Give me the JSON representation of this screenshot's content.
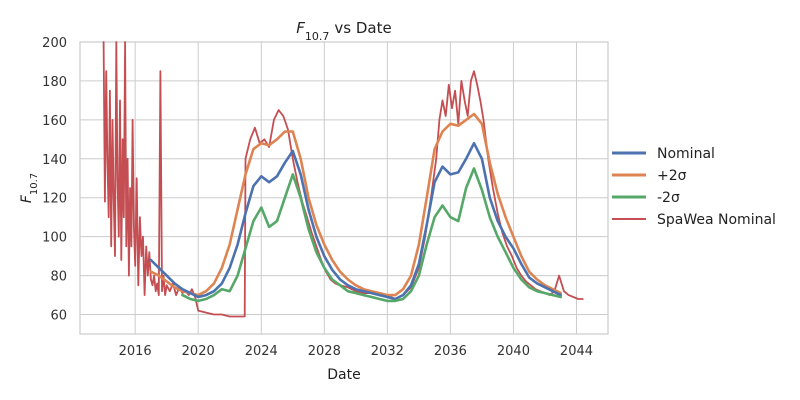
{
  "chart_data": {
    "type": "line",
    "title": "F10.7 vs Date",
    "title_parts": {
      "symbol": "F",
      "subscript": "10.7",
      "rest": "vs Date"
    },
    "xlabel": "Date",
    "ylabel": "F10.7",
    "ylabel_parts": {
      "symbol": "F",
      "subscript": "10.7"
    },
    "xlim": [
      2012.5,
      2046.0
    ],
    "ylim": [
      50,
      200
    ],
    "x_ticks": [
      2016,
      2020,
      2024,
      2028,
      2032,
      2036,
      2040,
      2044
    ],
    "x_tick_labels": [
      "2016",
      "2020",
      "2024",
      "2028",
      "2032",
      "2036",
      "2040",
      "2044"
    ],
    "y_ticks": [
      60,
      80,
      100,
      120,
      140,
      160,
      180,
      200
    ],
    "y_tick_labels": [
      "60",
      "80",
      "100",
      "120",
      "140",
      "160",
      "180",
      "200"
    ],
    "grid": true,
    "legend_position": "right, outside plot",
    "series": [
      {
        "name": "Nominal",
        "color": "#4c72b0",
        "x": [
          2017.0,
          2017.5,
          2018.0,
          2018.5,
          2019.0,
          2019.5,
          2020.0,
          2020.5,
          2021.0,
          2021.5,
          2022.0,
          2022.5,
          2023.0,
          2023.5,
          2024.0,
          2024.5,
          2025.0,
          2025.5,
          2026.0,
          2026.5,
          2027.0,
          2027.5,
          2028.0,
          2028.5,
          2029.0,
          2029.5,
          2030.0,
          2030.5,
          2031.0,
          2031.5,
          2032.0,
          2032.5,
          2033.0,
          2033.5,
          2034.0,
          2034.5,
          2035.0,
          2035.5,
          2036.0,
          2036.5,
          2037.0,
          2037.5,
          2038.0,
          2038.5,
          2039.0,
          2039.5,
          2040.0,
          2040.5,
          2041.0,
          2041.5,
          2042.0,
          2042.5,
          2043.0
        ],
        "y": [
          88,
          84,
          80,
          76,
          73,
          71,
          69,
          70,
          72,
          76,
          84,
          96,
          112,
          126,
          131,
          128,
          131,
          138,
          144,
          132,
          114,
          100,
          90,
          83,
          78,
          75,
          73,
          72,
          71,
          70,
          69,
          68,
          70,
          75,
          86,
          106,
          128,
          136,
          132,
          133,
          140,
          148,
          140,
          120,
          108,
          100,
          94,
          86,
          79,
          76,
          74,
          72,
          70
        ]
      },
      {
        "name": "+2σ",
        "color": "#dd8452",
        "x": [
          2017.0,
          2017.5,
          2018.0,
          2018.5,
          2019.0,
          2019.5,
          2020.0,
          2020.5,
          2021.0,
          2021.5,
          2022.0,
          2022.5,
          2023.0,
          2023.5,
          2024.0,
          2024.5,
          2025.0,
          2025.5,
          2026.0,
          2026.5,
          2027.0,
          2027.5,
          2028.0,
          2028.5,
          2029.0,
          2029.5,
          2030.0,
          2030.5,
          2031.0,
          2031.5,
          2032.0,
          2032.5,
          2033.0,
          2033.5,
          2034.0,
          2034.5,
          2035.0,
          2035.5,
          2036.0,
          2036.5,
          2037.0,
          2037.5,
          2038.0,
          2038.5,
          2039.0,
          2039.5,
          2040.0,
          2040.5,
          2041.0,
          2041.5,
          2042.0,
          2042.5,
          2043.0
        ],
        "y": [
          82,
          80,
          77,
          74,
          72,
          71,
          70,
          72,
          76,
          84,
          96,
          114,
          132,
          145,
          148,
          147,
          150,
          154,
          154,
          140,
          120,
          106,
          96,
          88,
          82,
          78,
          75,
          73,
          72,
          71,
          70,
          70,
          73,
          80,
          96,
          120,
          145,
          154,
          158,
          157,
          160,
          163,
          158,
          138,
          122,
          110,
          100,
          90,
          82,
          78,
          75,
          73,
          71
        ]
      },
      {
        "name": "-2σ",
        "color": "#55a868",
        "x": [
          2019.0,
          2019.5,
          2020.0,
          2020.5,
          2021.0,
          2021.5,
          2022.0,
          2022.5,
          2023.0,
          2023.5,
          2024.0,
          2024.5,
          2025.0,
          2025.5,
          2026.0,
          2026.5,
          2027.0,
          2027.5,
          2028.0,
          2028.5,
          2029.0,
          2029.5,
          2030.0,
          2030.5,
          2031.0,
          2031.5,
          2032.0,
          2032.5,
          2033.0,
          2033.5,
          2034.0,
          2034.5,
          2035.0,
          2035.5,
          2036.0,
          2036.5,
          2037.0,
          2037.5,
          2038.0,
          2038.5,
          2039.0,
          2039.5,
          2040.0,
          2040.5,
          2041.0,
          2041.5,
          2042.0,
          2042.5,
          2043.0
        ],
        "y": [
          70,
          68,
          67,
          68,
          70,
          73,
          72,
          80,
          94,
          108,
          115,
          105,
          108,
          120,
          132,
          120,
          104,
          92,
          84,
          78,
          75,
          72,
          71,
          70,
          69,
          68,
          67,
          67,
          68,
          72,
          80,
          96,
          110,
          116,
          110,
          108,
          125,
          135,
          124,
          110,
          100,
          92,
          84,
          78,
          74,
          72,
          71,
          70,
          69
        ]
      },
      {
        "name": "SpaWea Nominal",
        "color": "#c44e52",
        "x": [
          2014.0,
          2014.08,
          2014.16,
          2014.24,
          2014.32,
          2014.4,
          2014.48,
          2014.56,
          2014.64,
          2014.72,
          2014.8,
          2014.88,
          2014.96,
          2015.04,
          2015.12,
          2015.2,
          2015.28,
          2015.36,
          2015.44,
          2015.52,
          2015.6,
          2015.68,
          2015.76,
          2015.84,
          2015.92,
          2016.0,
          2016.1,
          2016.2,
          2016.3,
          2016.4,
          2016.5,
          2016.6,
          2016.7,
          2016.8,
          2016.9,
          2017.0,
          2017.1,
          2017.2,
          2017.3,
          2017.4,
          2017.5,
          2017.6,
          2017.7,
          2017.8,
          2017.9,
          2018.0,
          2018.2,
          2018.4,
          2018.6,
          2018.8,
          2019.0,
          2019.2,
          2019.4,
          2019.6,
          2019.8,
          2020.0,
          2020.5,
          2021.0,
          2021.5,
          2022.0,
          2022.5,
          2022.95,
          2023.0,
          2023.3,
          2023.6,
          2023.9,
          2024.2,
          2024.5,
          2024.8,
          2025.1,
          2025.4,
          2025.7,
          2026.0,
          2026.3,
          2026.6,
          2026.9,
          2027.2,
          2027.5,
          2027.8,
          2028.1,
          2028.4,
          2028.7,
          2029.0,
          2029.5,
          2030.0,
          2030.5,
          2031.0,
          2031.5,
          2032.0,
          2032.5,
          2033.0,
          2033.5,
          2034.0,
          2034.4,
          2034.8,
          2035.1,
          2035.3,
          2035.5,
          2035.7,
          2035.9,
          2036.1,
          2036.3,
          2036.5,
          2036.7,
          2036.9,
          2037.1,
          2037.3,
          2037.5,
          2037.7,
          2037.9,
          2038.1,
          2038.4,
          2038.7,
          2039.0,
          2039.3,
          2039.6,
          2039.9,
          2040.2,
          2040.5,
          2040.8,
          2041.1,
          2041.4,
          2041.7,
          2042.0,
          2042.3,
          2042.6,
          2042.9,
          2043.2,
          2043.5,
          2043.8,
          2044.1,
          2044.4
        ],
        "y": [
          200,
          118,
          185,
          140,
          110,
          175,
          95,
          160,
          120,
          90,
          200,
          130,
          100,
          170,
          88,
          150,
          110,
          200,
          95,
          140,
          80,
          125,
          95,
          160,
          105,
          85,
          130,
          75,
          110,
          90,
          100,
          70,
          95,
          80,
          92,
          78,
          75,
          80,
          72,
          76,
          70,
          185,
          72,
          80,
          70,
          75,
          72,
          76,
          70,
          74,
          71,
          72,
          70,
          73,
          69,
          62,
          61,
          60,
          60,
          59,
          59,
          59,
          140,
          150,
          156,
          148,
          150,
          146,
          160,
          165,
          162,
          155,
          140,
          128,
          118,
          110,
          102,
          95,
          88,
          82,
          78,
          76,
          75,
          74,
          72,
          71,
          71,
          70,
          70,
          68,
          70,
          74,
          84,
          100,
          122,
          140,
          160,
          170,
          162,
          178,
          166,
          175,
          158,
          180,
          170,
          162,
          180,
          185,
          178,
          170,
          160,
          140,
          125,
          112,
          102,
          95,
          90,
          84,
          80,
          77,
          75,
          73,
          72,
          71,
          70,
          72,
          80,
          72,
          70,
          69,
          68,
          68
        ]
      }
    ]
  }
}
